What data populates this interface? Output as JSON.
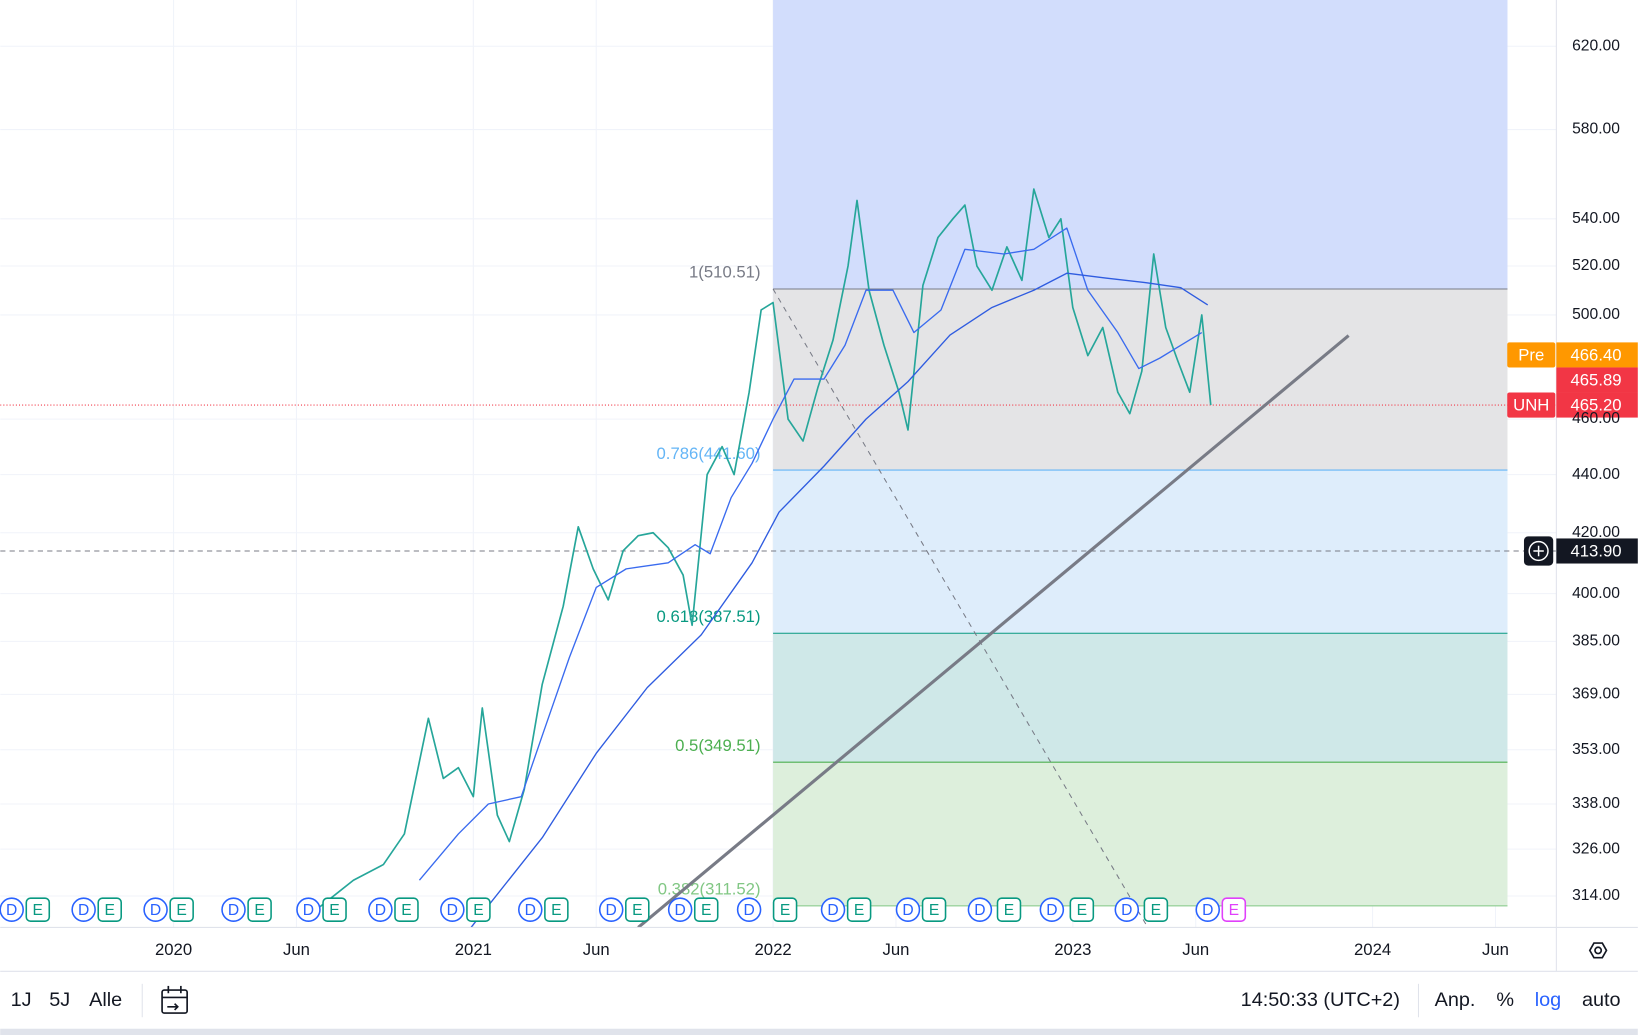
{
  "chart_data": {
    "type": "line",
    "log_scale": true,
    "grid": true,
    "xlim": [
      2019.4216,
      2024.613
    ],
    "xticks": [
      {
        "value": 2020,
        "label": "2020"
      },
      {
        "value": 2020.41,
        "label": "Jun"
      },
      {
        "value": 2021,
        "label": "2021"
      },
      {
        "value": 2021.41,
        "label": "Jun"
      },
      {
        "value": 2022,
        "label": "2022"
      },
      {
        "value": 2022.41,
        "label": "Jun"
      },
      {
        "value": 2023,
        "label": "2023"
      },
      {
        "value": 2023.41,
        "label": "Jun"
      },
      {
        "value": 2024,
        "label": "2024"
      },
      {
        "value": 2024.41,
        "label": "Jun"
      }
    ],
    "ylim": [
      306.2,
      643.4
    ],
    "yticks": [
      {
        "value": 314,
        "label": "314.00"
      },
      {
        "value": 326,
        "label": "326.00"
      },
      {
        "value": 338,
        "label": "338.00"
      },
      {
        "value": 353,
        "label": "353.00"
      },
      {
        "value": 369,
        "label": "369.00"
      },
      {
        "value": 385,
        "label": "385.00"
      },
      {
        "value": 400,
        "label": "400.00"
      },
      {
        "value": 420,
        "label": "420.00"
      },
      {
        "value": 440,
        "label": "440.00"
      },
      {
        "value": 460,
        "label": "460.00"
      },
      {
        "value": 500,
        "label": "500.00"
      },
      {
        "value": 520,
        "label": "520.00"
      },
      {
        "value": 540,
        "label": "540.00"
      },
      {
        "value": 580,
        "label": "580.00"
      },
      {
        "value": 620,
        "label": "620.00"
      }
    ],
    "series": [
      {
        "name": "UNH",
        "color": "#26a69a",
        "x": [
          2020.43,
          2020.5,
          2020.6,
          2020.7,
          2020.77,
          2020.85,
          2020.9,
          2020.95,
          2021.0,
          2021.03,
          2021.08,
          2021.12,
          2021.17,
          2021.23,
          2021.3,
          2021.35,
          2021.4,
          2021.45,
          2021.5,
          2021.55,
          2021.6,
          2021.65,
          2021.7,
          2021.73,
          2021.78,
          2021.83,
          2021.87,
          2021.92,
          2021.96,
          2022.0,
          2022.05,
          2022.1,
          2022.15,
          2022.2,
          2022.25,
          2022.28,
          2022.32,
          2022.37,
          2022.42,
          2022.45,
          2022.5,
          2022.55,
          2022.6,
          2022.64,
          2022.68,
          2022.73,
          2022.78,
          2022.83,
          2022.87,
          2022.92,
          2022.96,
          2023.0,
          2023.05,
          2023.1,
          2023.15,
          2023.19,
          2023.23,
          2023.27,
          2023.31,
          2023.35,
          2023.39,
          2023.43,
          2023.46
        ],
        "values": [
          308,
          312,
          318,
          322,
          330,
          362,
          345,
          348,
          340,
          365,
          335,
          328,
          342,
          372,
          396,
          422,
          408,
          398,
          414,
          419,
          420,
          415,
          406,
          390,
          440,
          450,
          440,
          470,
          502,
          505,
          460,
          452,
          472,
          490,
          520,
          548,
          510,
          488,
          470,
          456,
          512,
          532,
          540,
          546,
          520,
          510,
          528,
          514,
          553,
          532,
          540,
          503,
          484,
          495,
          470,
          462,
          478,
          525,
          495,
          482,
          470,
          500,
          465.2
        ]
      },
      {
        "color": "#3a6bef",
        "x": [
          2020.82,
          2020.95,
          2021.05,
          2021.16,
          2021.23,
          2021.32,
          2021.41,
          2021.51,
          2021.65,
          2021.74,
          2021.79,
          2021.86,
          2021.93,
          2022.0,
          2022.07,
          2022.17,
          2022.24,
          2022.31,
          2022.4,
          2022.47,
          2022.56,
          2022.64,
          2022.77,
          2022.87,
          2022.98,
          2023.05,
          2023.15,
          2023.22,
          2023.29,
          2023.36,
          2023.43
        ],
        "values": [
          318,
          330,
          338,
          340,
          357,
          380,
          402,
          408,
          410,
          416,
          413,
          432,
          444,
          460,
          475,
          475,
          488,
          510,
          510,
          493,
          502,
          527,
          525,
          527,
          536,
          510,
          493,
          479,
          483,
          488,
          493
        ]
      },
      {
        "color": "#2f5ce0",
        "x": [
          2020.99,
          2021.23,
          2021.41,
          2021.58,
          2021.76,
          2021.93,
          2022.02,
          2022.17,
          2022.31,
          2022.45,
          2022.59,
          2022.73,
          2022.87,
          2022.98,
          2023.11,
          2023.25,
          2023.36,
          2023.45
        ],
        "values": [
          306,
          329,
          352,
          371,
          387,
          410,
          427,
          443,
          460,
          474,
          492,
          503,
          510,
          517,
          515,
          513,
          511,
          504
        ]
      }
    ],
    "fibonacci": {
      "x_start": 2022.0,
      "x_end": 2024.45,
      "levels": [
        {
          "ratio": 1,
          "value": 510.51,
          "label": "1(510.51)",
          "color": "#787b86",
          "fill": "#d2ddfc"
        },
        {
          "ratio": 0.786,
          "value": 441.6,
          "label": "0.786(441.60)",
          "color": "#64b5f6",
          "fill": "#e4e4e6"
        },
        {
          "ratio": 0.618,
          "value": 387.51,
          "label": "0.618(387.51)",
          "color": "#089981",
          "fill": "#deedfb"
        },
        {
          "ratio": 0.5,
          "value": 349.51,
          "label": "0.5(349.51)",
          "color": "#4caf50",
          "fill": "#cfe8e8"
        },
        {
          "ratio": 0.382,
          "value": 311.52,
          "label": "0.382(311.52)",
          "color": "#81c784",
          "fill": "#ddefdc"
        }
      ],
      "diagonal": {
        "x": [
          2022.0,
          2023.25
        ],
        "values": [
          510.51,
          306.2
        ]
      }
    },
    "trendline": {
      "color": "#787b86",
      "x": [
        2021.55,
        2023.92
      ],
      "values": [
        306.2,
        491.8
      ]
    },
    "price_labels": [
      {
        "tag": "Pre",
        "value": 466.4,
        "label": "466.40",
        "color": "#ff9800"
      },
      {
        "value": 465.89,
        "label": "465.89",
        "color": "#f23645"
      },
      {
        "tag": "UNH",
        "value": 465.2,
        "label": "465.20",
        "color": "#f23645",
        "line": "dotted"
      },
      {
        "value": 413.9,
        "label": "413.90",
        "color": "#131722",
        "line": "dashed",
        "icon": "crosshair"
      }
    ],
    "events": [
      {
        "x": 2019.46,
        "label": "D",
        "shape": "circle",
        "color": "#2962ff"
      },
      {
        "x": 2019.547,
        "label": "E",
        "shape": "square",
        "color": "#089981"
      },
      {
        "x": 2019.7,
        "label": "D",
        "shape": "circle",
        "color": "#2962ff"
      },
      {
        "x": 2019.787,
        "label": "E",
        "shape": "square",
        "color": "#089981"
      },
      {
        "x": 2019.94,
        "label": "D",
        "shape": "circle",
        "color": "#2962ff"
      },
      {
        "x": 2020.027,
        "label": "E",
        "shape": "square",
        "color": "#089981"
      },
      {
        "x": 2020.2,
        "label": "D",
        "shape": "circle",
        "color": "#2962ff"
      },
      {
        "x": 2020.287,
        "label": "E",
        "shape": "square",
        "color": "#089981"
      },
      {
        "x": 2020.45,
        "label": "D",
        "shape": "circle",
        "color": "#2962ff"
      },
      {
        "x": 2020.537,
        "label": "E",
        "shape": "square",
        "color": "#089981"
      },
      {
        "x": 2020.69,
        "label": "D",
        "shape": "circle",
        "color": "#2962ff"
      },
      {
        "x": 2020.777,
        "label": "E",
        "shape": "square",
        "color": "#089981"
      },
      {
        "x": 2020.93,
        "label": "D",
        "shape": "circle",
        "color": "#2962ff"
      },
      {
        "x": 2021.017,
        "label": "E",
        "shape": "square",
        "color": "#089981"
      },
      {
        "x": 2021.19,
        "label": "D",
        "shape": "circle",
        "color": "#2962ff"
      },
      {
        "x": 2021.277,
        "label": "E",
        "shape": "square",
        "color": "#089981"
      },
      {
        "x": 2021.46,
        "label": "D",
        "shape": "circle",
        "color": "#2962ff"
      },
      {
        "x": 2021.547,
        "label": "E",
        "shape": "square",
        "color": "#089981"
      },
      {
        "x": 2021.69,
        "label": "D",
        "shape": "circle",
        "color": "#2962ff"
      },
      {
        "x": 2021.777,
        "label": "E",
        "shape": "square",
        "color": "#089981"
      },
      {
        "x": 2021.92,
        "label": "D",
        "shape": "circle",
        "color": "#2962ff"
      },
      {
        "x": 2022.04,
        "label": "E",
        "shape": "square",
        "color": "#089981"
      },
      {
        "x": 2022.2,
        "label": "D",
        "shape": "circle",
        "color": "#2962ff"
      },
      {
        "x": 2022.287,
        "label": "E",
        "shape": "square",
        "color": "#089981"
      },
      {
        "x": 2022.45,
        "label": "D",
        "shape": "circle",
        "color": "#2962ff"
      },
      {
        "x": 2022.537,
        "label": "E",
        "shape": "square",
        "color": "#089981"
      },
      {
        "x": 2022.69,
        "label": "D",
        "shape": "circle",
        "color": "#2962ff"
      },
      {
        "x": 2022.787,
        "label": "E",
        "shape": "square",
        "color": "#089981"
      },
      {
        "x": 2022.93,
        "label": "D",
        "shape": "circle",
        "color": "#2962ff"
      },
      {
        "x": 2023.03,
        "label": "E",
        "shape": "square",
        "color": "#089981"
      },
      {
        "x": 2023.18,
        "label": "D",
        "shape": "circle",
        "color": "#2962ff"
      },
      {
        "x": 2023.277,
        "label": "E",
        "shape": "square",
        "color": "#089981"
      },
      {
        "x": 2023.45,
        "label": "D",
        "shape": "circle",
        "color": "#2962ff"
      },
      {
        "x": 2023.537,
        "label": "E",
        "shape": "square",
        "color": "#e040fb"
      }
    ],
    "toolbar": {
      "ranges": [
        "1J",
        "5J",
        "Alle"
      ],
      "time": "14:50:33 (UTC+2)",
      "options": [
        {
          "label": "Anp.",
          "color": "#131722"
        },
        {
          "label": "%",
          "color": "#131722"
        },
        {
          "label": "log",
          "color": "#2962ff"
        },
        {
          "label": "auto",
          "color": "#131722"
        }
      ]
    }
  }
}
